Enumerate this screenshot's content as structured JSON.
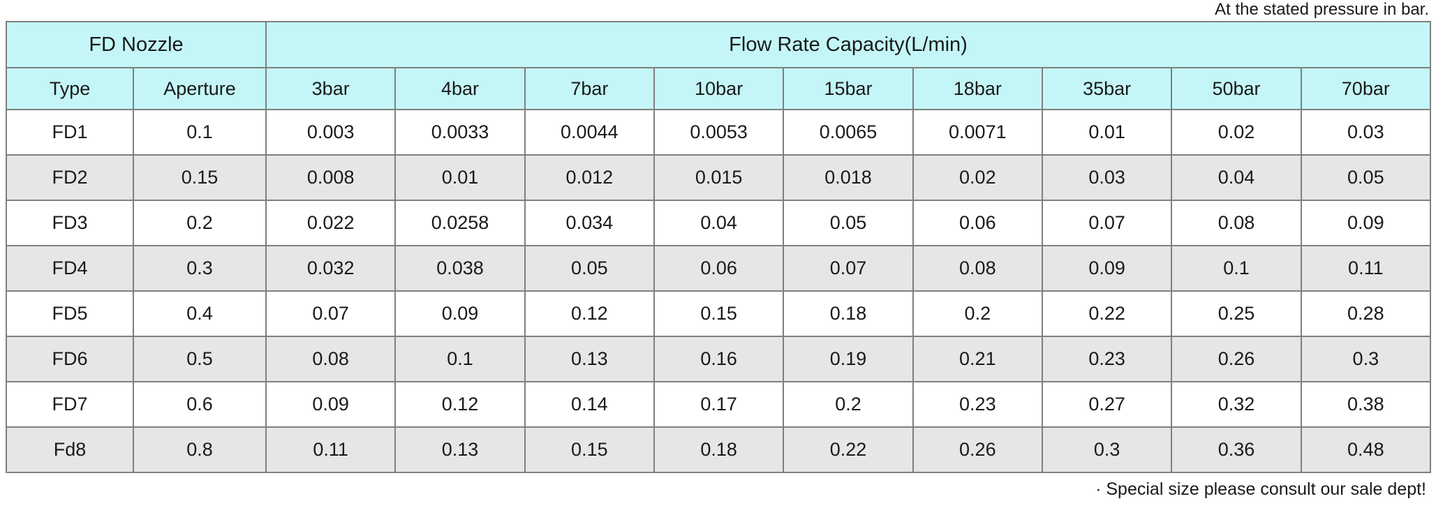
{
  "notes": {
    "top": "At the stated pressure in bar.",
    "bottom": "· Special size please consult our sale dept!"
  },
  "table": {
    "group_headers": [
      {
        "label": "FD Nozzle",
        "colspan": 2
      },
      {
        "label": "Flow Rate Capacity(L/min)",
        "colspan": 9
      }
    ],
    "columns": [
      "Type",
      "Aperture",
      "3bar",
      "4bar",
      "7bar",
      "10bar",
      "15bar",
      "18bar",
      "35bar",
      "50bar",
      "70bar"
    ],
    "rows": [
      [
        "FD1",
        "0.1",
        "0.003",
        "0.0033",
        "0.0044",
        "0.0053",
        "0.0065",
        "0.0071",
        "0.01",
        "0.02",
        "0.03"
      ],
      [
        "FD2",
        "0.15",
        "0.008",
        "0.01",
        "0.012",
        "0.015",
        "0.018",
        "0.02",
        "0.03",
        "0.04",
        "0.05"
      ],
      [
        "FD3",
        "0.2",
        "0.022",
        "0.0258",
        "0.034",
        "0.04",
        "0.05",
        "0.06",
        "0.07",
        "0.08",
        "0.09"
      ],
      [
        "FD4",
        "0.3",
        "0.032",
        "0.038",
        "0.05",
        "0.06",
        "0.07",
        "0.08",
        "0.09",
        "0.1",
        "0.11"
      ],
      [
        "FD5",
        "0.4",
        "0.07",
        "0.09",
        "0.12",
        "0.15",
        "0.18",
        "0.2",
        "0.22",
        "0.25",
        "0.28"
      ],
      [
        "FD6",
        "0.5",
        "0.08",
        "0.1",
        "0.13",
        "0.16",
        "0.19",
        "0.21",
        "0.23",
        "0.26",
        "0.3"
      ],
      [
        "FD7",
        "0.6",
        "0.09",
        "0.12",
        "0.14",
        "0.17",
        "0.2",
        "0.23",
        "0.27",
        "0.32",
        "0.38"
      ],
      [
        "Fd8",
        "0.8",
        "0.11",
        "0.13",
        "0.15",
        "0.18",
        "0.22",
        "0.26",
        "0.3",
        "0.36",
        "0.48"
      ]
    ]
  },
  "colors": {
    "header_bg": "#c4f6f8",
    "alt_row_bg": "#e6e6e6",
    "border": "#7f7f7f",
    "text": "#1a1a1a"
  }
}
